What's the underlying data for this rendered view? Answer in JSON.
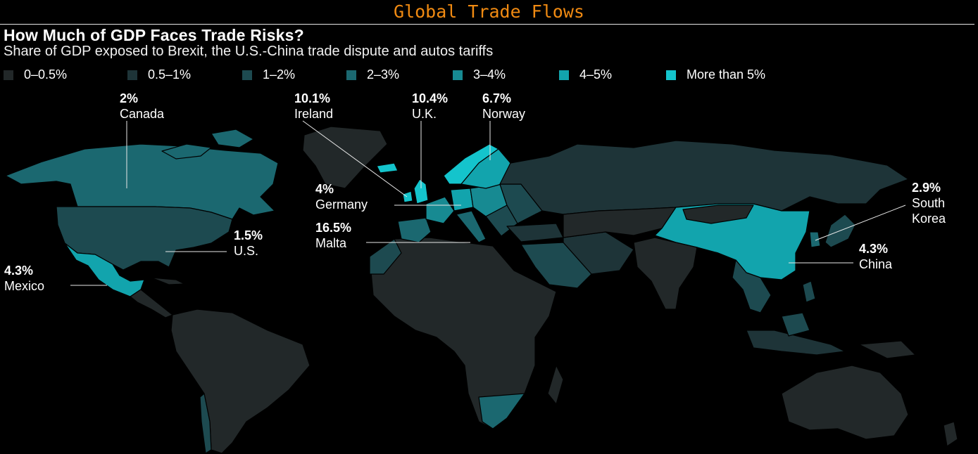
{
  "header": {
    "title": "Global Trade Flows",
    "title_color": "#f08a12"
  },
  "title": "How Much of GDP Faces Trade Risks?",
  "subtitle": "Share of GDP exposed to Brexit, the U.S.-China trade dispute and autos tariffs",
  "legend": [
    {
      "label": "0–0.5%",
      "color": "#222829"
    },
    {
      "label": "0.5–1%",
      "color": "#1e3438"
    },
    {
      "label": "1–2%",
      "color": "#1d4a50"
    },
    {
      "label": "2–3%",
      "color": "#1b6870"
    },
    {
      "label": "3–4%",
      "color": "#178a92"
    },
    {
      "label": "4–5%",
      "color": "#12a4ad"
    },
    {
      "label": "More than 5%",
      "color": "#14c4cc"
    }
  ],
  "callouts": [
    {
      "id": "canada",
      "value": "2%",
      "name": "Canada"
    },
    {
      "id": "ireland",
      "value": "10.1%",
      "name": "Ireland"
    },
    {
      "id": "uk",
      "value": "10.4%",
      "name": "U.K."
    },
    {
      "id": "norway",
      "value": "6.7%",
      "name": "Norway"
    },
    {
      "id": "germany",
      "value": "4%",
      "name": "Germany"
    },
    {
      "id": "malta",
      "value": "16.5%",
      "name": "Malta"
    },
    {
      "id": "us",
      "value": "1.5%",
      "name": "U.S."
    },
    {
      "id": "mexico",
      "value": "4.3%",
      "name": "Mexico"
    },
    {
      "id": "south-korea",
      "value": "2.9%",
      "name": "South Korea"
    },
    {
      "id": "china",
      "value": "4.3%",
      "name": "China"
    }
  ]
}
